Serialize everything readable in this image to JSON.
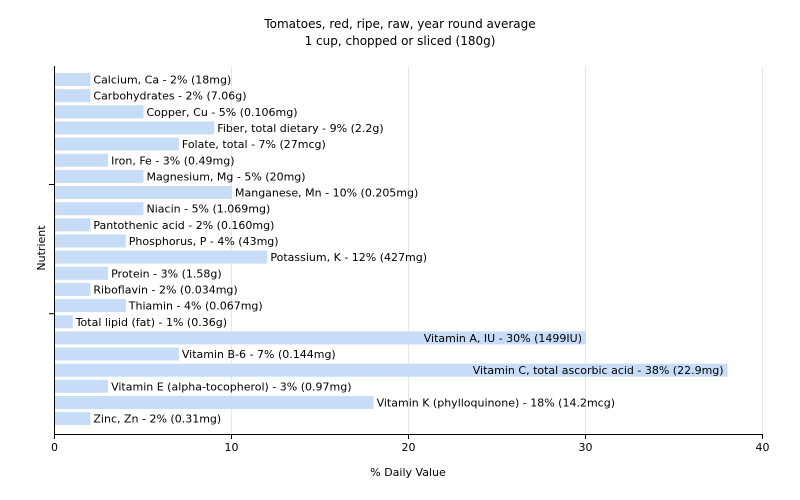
{
  "chart_data": {
    "type": "bar",
    "orientation": "horizontal",
    "title": "Tomatoes, red, ripe, raw, year round average",
    "subtitle": "1 cup, chopped or sliced (180g)",
    "xlabel": "% Daily Value",
    "ylabel": "Nutrient",
    "xlim": [
      0,
      40
    ],
    "xticks": [
      0,
      10,
      20,
      30,
      40
    ],
    "grid": true,
    "bar_color": "#c6dcf7",
    "grid_color": "#e6e6e6",
    "axis_color": "#000000",
    "categories": [
      "Calcium, Ca",
      "Carbohydrates",
      "Copper, Cu",
      "Fiber, total dietary",
      "Folate, total",
      "Iron, Fe",
      "Magnesium, Mg",
      "Manganese, Mn",
      "Niacin",
      "Pantothenic acid",
      "Phosphorus, P",
      "Potassium, K",
      "Protein",
      "Riboflavin",
      "Thiamin",
      "Total lipid (fat)",
      "Vitamin A, IU",
      "Vitamin B-6",
      "Vitamin C, total ascorbic acid",
      "Vitamin E (alpha-tocopherol)",
      "Vitamin K (phylloquinone)",
      "Zinc, Zn"
    ],
    "values": [
      2,
      2,
      5,
      9,
      7,
      3,
      5,
      10,
      5,
      2,
      4,
      12,
      3,
      2,
      4,
      1,
      30,
      7,
      38,
      3,
      18,
      2
    ],
    "labels": [
      "Calcium, Ca - 2% (18mg)",
      "Carbohydrates - 2% (7.06g)",
      "Copper, Cu - 5% (0.106mg)",
      "Fiber, total dietary - 9% (2.2g)",
      "Folate, total - 7% (27mcg)",
      "Iron, Fe - 3% (0.49mg)",
      "Magnesium, Mg - 5% (20mg)",
      "Manganese, Mn - 10% (0.205mg)",
      "Niacin - 5% (1.069mg)",
      "Pantothenic acid - 2% (0.160mg)",
      "Phosphorus, P - 4% (43mg)",
      "Potassium, K - 12% (427mg)",
      "Protein - 3% (1.58g)",
      "Riboflavin - 2% (0.034mg)",
      "Thiamin - 4% (0.067mg)",
      "Total lipid (fat) - 1% (0.36g)",
      "Vitamin A, IU - 30% (1499IU)",
      "Vitamin B-6 - 7% (0.144mg)",
      "Vitamin C, total ascorbic acid - 38% (22.9mg)",
      "Vitamin E (alpha-tocopherol) - 3% (0.97mg)",
      "Vitamin K (phylloquinone) - 18% (14.2mcg)",
      "Zinc, Zn - 2% (0.31mg)"
    ]
  }
}
